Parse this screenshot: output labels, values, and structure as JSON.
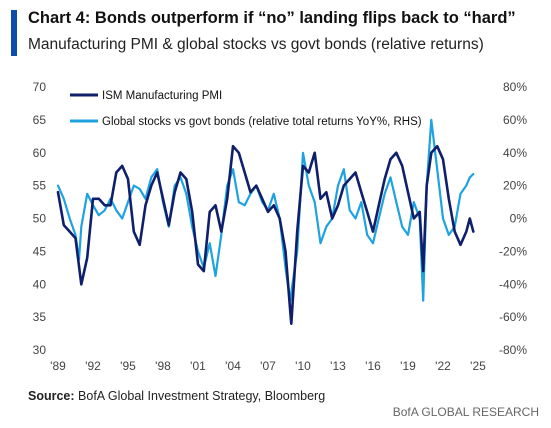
{
  "header": {
    "title": "Chart 4: Bonds outperform if “no” landing flips back to “hard”",
    "subtitle": "Manufacturing PMI & global stocks vs govt bonds (relative returns)"
  },
  "footer": {
    "source_label": "Source:",
    "source_text": "BofA Global Investment Strategy, Bloomberg",
    "brand": "BofA GLOBAL RESEARCH"
  },
  "colors": {
    "pmi": "#0f1f6b",
    "rel": "#1ea2e0",
    "accent": "#0a4ea8"
  },
  "chart_data": {
    "type": "line",
    "title": "Chart 4: Bonds outperform if “no” landing flips back to “hard”",
    "subtitle": "Manufacturing PMI & global stocks vs govt bonds (relative returns)",
    "xlim": [
      1989,
      2025
    ],
    "x_ticks": [
      "'89",
      "'92",
      "'95",
      "'98",
      "'01",
      "'04",
      "'07",
      "'10",
      "'13",
      "'16",
      "'19",
      "'22",
      "'25"
    ],
    "ylim_left": [
      30,
      70
    ],
    "y_ticks_left": [
      "70",
      "65",
      "60",
      "55",
      "50",
      "45",
      "40",
      "35",
      "30"
    ],
    "ylim_right": [
      -80,
      80
    ],
    "y_ticks_right": [
      "80%",
      "60%",
      "40%",
      "20%",
      "0%",
      "-20%",
      "-40%",
      "-60%",
      "-80%"
    ],
    "grid": false,
    "legend_position": "top-left",
    "series": [
      {
        "name": "ISM Manufacturing PMI",
        "axis": "left",
        "x": [
          1989.0,
          1989.5,
          1990.0,
          1990.5,
          1991.0,
          1991.5,
          1992.0,
          1992.5,
          1993.0,
          1993.5,
          1994.0,
          1994.5,
          1995.0,
          1995.5,
          1996.0,
          1996.5,
          1997.0,
          1997.5,
          1998.0,
          1998.5,
          1999.0,
          1999.5,
          2000.0,
          2000.5,
          2001.0,
          2001.5,
          2002.0,
          2002.5,
          2003.0,
          2003.5,
          2004.0,
          2004.5,
          2005.0,
          2005.5,
          2006.0,
          2006.5,
          2007.0,
          2007.5,
          2008.0,
          2008.5,
          2008.9,
          2009.0,
          2009.5,
          2010.0,
          2010.5,
          2011.0,
          2011.5,
          2012.0,
          2012.5,
          2013.0,
          2013.5,
          2014.0,
          2014.5,
          2015.0,
          2015.5,
          2016.0,
          2016.5,
          2017.0,
          2017.5,
          2018.0,
          2018.5,
          2019.0,
          2019.5,
          2020.0,
          2020.3,
          2020.6,
          2021.0,
          2021.5,
          2022.0,
          2022.5,
          2023.0,
          2023.5,
          2024.0,
          2024.3,
          2024.6
        ],
        "values": [
          54,
          49,
          48,
          47,
          40,
          44,
          53,
          53,
          52,
          52,
          57,
          58,
          56,
          48,
          46,
          52,
          55,
          57,
          53,
          49,
          54,
          57,
          56,
          51,
          43,
          42,
          51,
          52,
          48,
          53,
          61,
          60,
          57,
          54,
          55,
          53,
          51,
          52,
          50,
          45,
          36,
          34,
          48,
          58,
          57,
          60,
          53,
          54,
          50,
          52,
          55,
          56,
          57,
          54,
          51,
          48,
          52,
          56,
          59,
          60,
          58,
          54,
          50,
          51,
          42,
          55,
          60,
          61,
          59,
          53,
          48,
          46,
          48,
          50,
          48
        ]
      },
      {
        "name": "Global stocks vs govt bonds (relative total returns YoY%, RHS)",
        "axis": "right",
        "x": [
          1989.0,
          1989.5,
          1990.0,
          1990.5,
          1990.8,
          1991.0,
          1991.5,
          1992.0,
          1992.5,
          1993.0,
          1993.5,
          1994.0,
          1994.5,
          1995.0,
          1995.5,
          1996.0,
          1996.5,
          1997.0,
          1997.5,
          1998.0,
          1998.5,
          1999.0,
          1999.5,
          2000.0,
          2000.5,
          2001.0,
          2001.5,
          2002.0,
          2002.5,
          2003.0,
          2003.5,
          2004.0,
          2004.5,
          2005.0,
          2005.5,
          2006.0,
          2006.5,
          2007.0,
          2007.5,
          2008.0,
          2008.5,
          2008.9,
          2009.0,
          2009.5,
          2010.0,
          2010.5,
          2011.0,
          2011.5,
          2012.0,
          2012.5,
          2013.0,
          2013.5,
          2014.0,
          2014.5,
          2015.0,
          2015.5,
          2016.0,
          2016.5,
          2017.0,
          2017.5,
          2018.0,
          2018.5,
          2019.0,
          2019.5,
          2020.0,
          2020.3,
          2020.6,
          2021.0,
          2021.5,
          2022.0,
          2022.5,
          2023.0,
          2023.5,
          2024.0,
          2024.3,
          2024.6
        ],
        "values": [
          20,
          12,
          0,
          -10,
          -25,
          -5,
          15,
          8,
          2,
          5,
          12,
          5,
          0,
          10,
          20,
          18,
          12,
          25,
          30,
          10,
          -5,
          20,
          25,
          15,
          -5,
          -20,
          -30,
          -15,
          -35,
          -10,
          20,
          30,
          10,
          8,
          15,
          20,
          10,
          5,
          15,
          0,
          -30,
          -50,
          -45,
          -20,
          40,
          20,
          10,
          -15,
          -5,
          0,
          20,
          30,
          5,
          0,
          10,
          -10,
          -15,
          0,
          15,
          25,
          10,
          -5,
          -10,
          10,
          0,
          -50,
          20,
          60,
          30,
          0,
          -10,
          -5,
          15,
          20,
          25,
          27
        ]
      }
    ]
  }
}
